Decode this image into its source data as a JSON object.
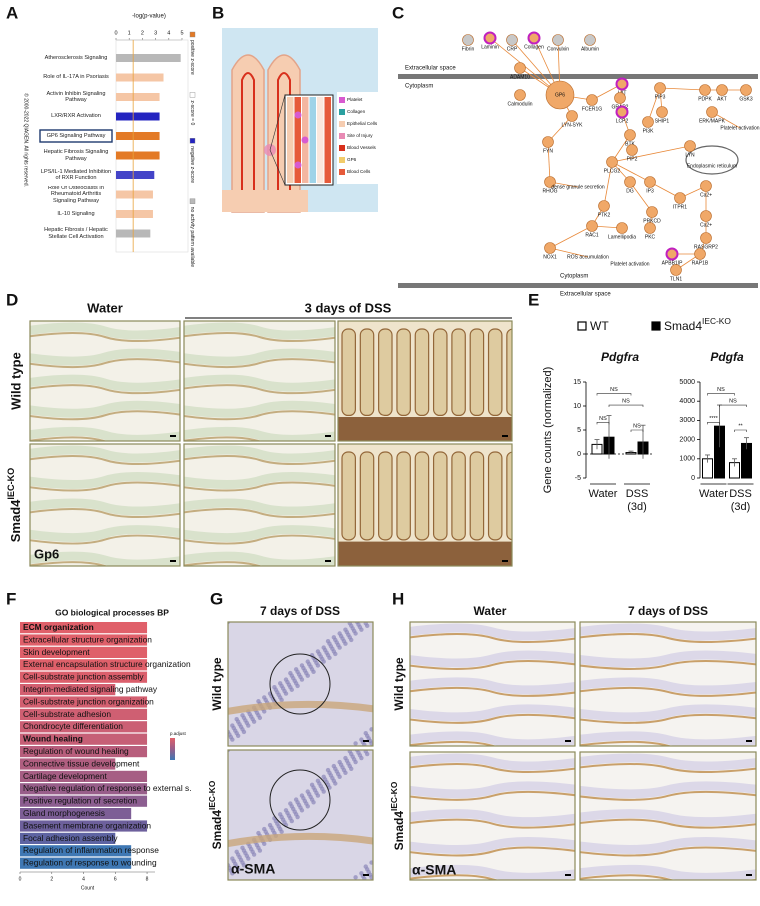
{
  "panel_labels": [
    "A",
    "B",
    "C",
    "D",
    "E",
    "F",
    "G",
    "H"
  ],
  "panel_a": {
    "type": "bar",
    "copyright": "© 2000-2022 QIAGEN. All rights reserved.",
    "xlabel": "-log(p-value)",
    "categories": [
      "Atherosclerosis Signaling",
      "Role of IL-17A in Psoriasis",
      "Activin Inhibin Signaling Pathway",
      "LXR/RXR Activation",
      "GP6 Signaling Pathway",
      "Hepatic Fibrosis Signaling Pathway",
      "LPS/IL-1 Mediated Inhibition of RXR Function",
      "Role Of Osteoclasts In Rheumatoid Arthritis Signaling Pathway",
      "IL-10 Signaling",
      "Hepatic Fibrosis / Hepatic Stellate Cell Activation"
    ],
    "values": [
      4.9,
      3.6,
      3.3,
      3.3,
      3.3,
      3.3,
      2.9,
      2.8,
      2.8,
      2.6
    ],
    "colors": [
      "#b8b8b8",
      "#f5c6a5",
      "#f5c6a5",
      "#2424c0",
      "#e37a26",
      "#e37a26",
      "#4444c8",
      "#f5c6a5",
      "#f5c6a5",
      "#b8b8b8"
    ],
    "xlim": [
      0,
      5
    ],
    "xticks": [
      0,
      1,
      2,
      3,
      4,
      5
    ],
    "threshold": 1.3,
    "highlight": 4,
    "legend": [
      {
        "name": "positive z-score",
        "color": "#e37a26"
      },
      {
        "name": "z-score = 0",
        "color": "#ffffff"
      },
      {
        "name": "negative z-score",
        "color": "#2424c0"
      },
      {
        "name": "no activity pattern available",
        "color": "#b8b8b8"
      }
    ]
  },
  "panel_b": {
    "legend": [
      "Platelet",
      "Collagen",
      "Epithelial Cells",
      "Site of Injury",
      "Blood Vessels",
      "GP6",
      "Blood Cells"
    ]
  },
  "panel_c": {
    "compartments": [
      "Extracellular space",
      "Cytoplasm",
      "Cytoplasm",
      "Extracellular space"
    ],
    "nodes": [
      "Fibrin",
      "Laminin",
      "CRP",
      "Collagen",
      "Convulxin",
      "Albumin",
      "ADAM10",
      "Calmodulin",
      "GP6",
      "FCER1G",
      "LAT",
      "GRAP2",
      "LCP2",
      "LYN-SYK",
      "FYN",
      "PIP3",
      "SHIP1",
      "PDPK",
      "AKT",
      "GSK3",
      "BTK",
      "PI3K",
      "ERK/MAPK",
      "Platelet activation",
      "PIP2",
      "LYN",
      "PLCG2",
      "DG",
      "IP3",
      "Endoplasmic reticulum",
      "Ca2+",
      "ITPR1",
      "Ca2+",
      "RHOG",
      "dense granule secretion",
      "PTK2",
      "PRKCD",
      "PKC",
      "RASGRP2",
      "RAC1",
      "Lamellipodia",
      "NOX1",
      "ROS accumulation",
      "Platelet activation",
      "APBB1IP",
      "RAP1B",
      "TLN1"
    ]
  },
  "panel_d": {
    "columns": [
      "Water",
      "3 days of DSS"
    ],
    "rows": [
      "Wild type",
      {
        "base": "Smad4",
        "sup": "IEC-KO"
      }
    ],
    "stain": "Gp6"
  },
  "panel_e": {
    "series": [
      {
        "name": "WT",
        "color": "#ffffff"
      },
      {
        "name": {
          "base": "Smad4",
          "sup": "IEC-KO"
        },
        "color": "#000000"
      }
    ],
    "ylabel": "Gene counts (normalized)",
    "categories": [
      [
        "Water"
      ],
      [
        "DSS",
        "(3d)"
      ]
    ],
    "charts": [
      {
        "type": "bar",
        "title": "Pdgfra",
        "ylim": [
          -5,
          15
        ],
        "yticks": [
          -5,
          0,
          5,
          10,
          15
        ],
        "values": [
          [
            2,
            0.3
          ],
          [
            3.5,
            2.5
          ]
        ],
        "errors": [
          [
            1,
            0.3
          ],
          [
            4.5,
            3.5
          ]
        ],
        "annotations": [
          "NS",
          "NS",
          "NS",
          "NS"
        ]
      },
      {
        "type": "bar",
        "title": "Pdgfa",
        "ylim": [
          0,
          5000
        ],
        "yticks": [
          0,
          1000,
          2000,
          3000,
          4000,
          5000
        ],
        "values": [
          [
            1000,
            800
          ],
          [
            2700,
            1800
          ]
        ],
        "errors": [
          [
            200,
            200
          ],
          [
            1100,
            300
          ]
        ],
        "annotations": [
          "****",
          "NS",
          "NS",
          "**"
        ]
      }
    ]
  },
  "panel_f": {
    "type": "bar",
    "title": "GO biological processes BP",
    "xlabel": "Count",
    "legend_title": "p.adjust",
    "xlim": [
      0,
      8.5
    ],
    "xticks": [
      0,
      2,
      4,
      6,
      8
    ],
    "categories": [
      "ECM organization",
      "Extracellular structure organization",
      "Skin development",
      "External encapsulation structure organization",
      "Cell-substrate junction assembly",
      "Integrin-mediated signaling pathway",
      "Cell-substrate junction organization",
      "Cell-substrate adhesion",
      "Chondrocyte differentiation",
      "Wound healing",
      "Regulation of wound healing",
      "Connective tissue development",
      "Cartilage development",
      "Negative regulation of response to external s.",
      "Positive regulation of secretion",
      "Gland morphogenesis",
      "Basement membrane organization",
      "Focal adhesion assembly",
      "Regulation of inflammation response",
      "Regulation of response to wounding"
    ],
    "values": [
      8,
      8,
      8,
      8,
      8,
      6,
      8,
      8,
      8,
      8,
      8,
      6,
      8,
      8,
      8,
      7,
      8,
      6,
      7,
      7
    ],
    "colors": [
      "#e0606a",
      "#e0606a",
      "#df606a",
      "#df606a",
      "#db5f6c",
      "#d35f70",
      "#d35f70",
      "#cf5f72",
      "#cb5f74",
      "#c65f76",
      "#b85e7c",
      "#b05e80",
      "#a65e84",
      "#985e8a",
      "#8c5e90",
      "#7d5e96",
      "#6d609c",
      "#5e64a2",
      "#3f78b4",
      "#3f78b4"
    ],
    "bold": [
      0,
      9
    ]
  },
  "panel_g": {
    "title": "7 days of DSS",
    "rows": [
      "Wild type",
      {
        "base": "Smad4",
        "sup": "IEC-KO"
      }
    ],
    "stain": "α-SMA"
  },
  "panel_h": {
    "columns": [
      "Water",
      "7 days of DSS"
    ],
    "rows": [
      "Wild type",
      {
        "base": "Smad4",
        "sup": "IEC-KO"
      }
    ],
    "stain": "α-SMA"
  }
}
